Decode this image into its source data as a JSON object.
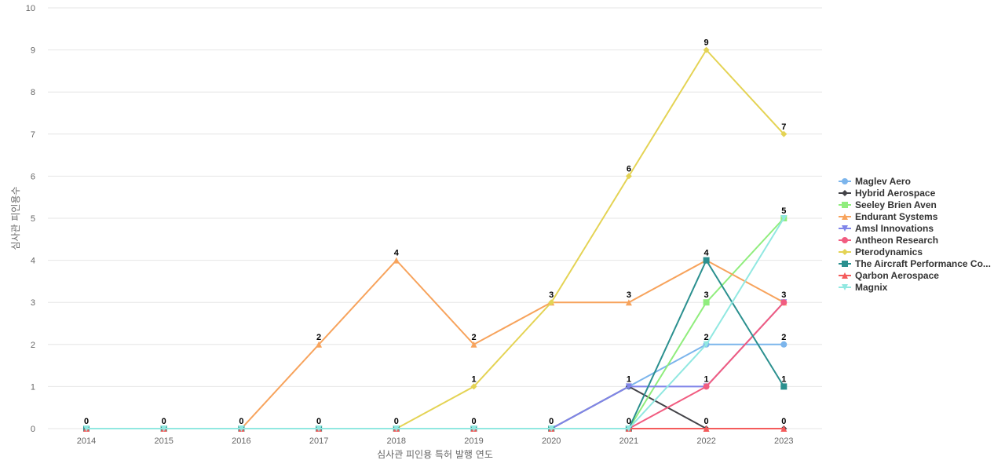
{
  "chart_data": {
    "type": "line",
    "xlabel": "심사관 피인용 특허 발행 연도",
    "ylabel": "심사관 피인용수",
    "x": [
      "2014",
      "2015",
      "2016",
      "2017",
      "2018",
      "2019",
      "2020",
      "2021",
      "2022",
      "2023"
    ],
    "ylim": [
      0,
      10
    ],
    "yticks": [
      0,
      1,
      2,
      3,
      4,
      5,
      6,
      7,
      8,
      9,
      10
    ],
    "grid": true,
    "legend_position": "right",
    "series": [
      {
        "name": "Maglev Aero",
        "color": "#7cb5ec",
        "marker": "circle",
        "values": [
          0,
          0,
          0,
          0,
          0,
          0,
          0,
          1,
          2,
          2
        ]
      },
      {
        "name": "Hybrid Aerospace",
        "color": "#434348",
        "marker": "diamond",
        "values": [
          0,
          0,
          0,
          0,
          0,
          0,
          0,
          1,
          0,
          0
        ]
      },
      {
        "name": "Seeley Brien Aven",
        "color": "#90ed7d",
        "marker": "square",
        "values": [
          0,
          0,
          0,
          0,
          0,
          0,
          0,
          0,
          3,
          5
        ]
      },
      {
        "name": "Endurant Systems",
        "color": "#f7a35c",
        "marker": "triangle",
        "values": [
          0,
          0,
          0,
          2,
          4,
          2,
          3,
          3,
          4,
          3
        ]
      },
      {
        "name": "Amsl Innovations",
        "color": "#8085e9",
        "marker": "triangle-down",
        "values": [
          0,
          0,
          0,
          0,
          0,
          0,
          0,
          1,
          1,
          3
        ]
      },
      {
        "name": "Antheon Research",
        "color": "#f15c80",
        "marker": "circle",
        "values": [
          0,
          0,
          0,
          0,
          0,
          0,
          0,
          0,
          1,
          3
        ]
      },
      {
        "name": "Pterodynamics",
        "color": "#e4d354",
        "marker": "diamond",
        "values": [
          0,
          0,
          0,
          0,
          0,
          1,
          3,
          6,
          9,
          7
        ]
      },
      {
        "name": "The Aircraft Performance Co...",
        "color": "#2b908f",
        "marker": "square",
        "values": [
          0,
          0,
          0,
          0,
          0,
          0,
          0,
          0,
          4,
          1
        ]
      },
      {
        "name": "Qarbon Aerospace",
        "color": "#f45b5b",
        "marker": "triangle",
        "values": [
          0,
          0,
          0,
          0,
          0,
          0,
          0,
          0,
          0,
          0
        ]
      },
      {
        "name": "Magnix",
        "color": "#91e8e1",
        "marker": "triangle-down",
        "values": [
          0,
          0,
          0,
          0,
          0,
          0,
          0,
          0,
          2,
          5
        ]
      }
    ],
    "data_labels": [
      {
        "x": "2014",
        "y": 0,
        "text": "0"
      },
      {
        "x": "2015",
        "y": 0,
        "text": "0"
      },
      {
        "x": "2016",
        "y": 0,
        "text": "0"
      },
      {
        "x": "2017",
        "y": 0,
        "text": "0"
      },
      {
        "x": "2017",
        "y": 2,
        "text": "2"
      },
      {
        "x": "2018",
        "y": 0,
        "text": "0"
      },
      {
        "x": "2018",
        "y": 4,
        "text": "4"
      },
      {
        "x": "2019",
        "y": 0,
        "text": "0"
      },
      {
        "x": "2019",
        "y": 1,
        "text": "1"
      },
      {
        "x": "2019",
        "y": 2,
        "text": "2"
      },
      {
        "x": "2020",
        "y": 0,
        "text": "0"
      },
      {
        "x": "2020",
        "y": 3,
        "text": "3"
      },
      {
        "x": "2021",
        "y": 0,
        "text": "0"
      },
      {
        "x": "2021",
        "y": 1,
        "text": "1"
      },
      {
        "x": "2021",
        "y": 3,
        "text": "3"
      },
      {
        "x": "2021",
        "y": 6,
        "text": "6"
      },
      {
        "x": "2022",
        "y": 0,
        "text": "0"
      },
      {
        "x": "2022",
        "y": 1,
        "text": "1"
      },
      {
        "x": "2022",
        "y": 2,
        "text": "2"
      },
      {
        "x": "2022",
        "y": 3,
        "text": "3"
      },
      {
        "x": "2022",
        "y": 4,
        "text": "4"
      },
      {
        "x": "2022",
        "y": 9,
        "text": "9"
      },
      {
        "x": "2023",
        "y": 0,
        "text": "0"
      },
      {
        "x": "2023",
        "y": 1,
        "text": "1"
      },
      {
        "x": "2023",
        "y": 2,
        "text": "2"
      },
      {
        "x": "2023",
        "y": 3,
        "text": "3"
      },
      {
        "x": "2023",
        "y": 5,
        "text": "5"
      },
      {
        "x": "2023",
        "y": 7,
        "text": "7"
      }
    ]
  }
}
